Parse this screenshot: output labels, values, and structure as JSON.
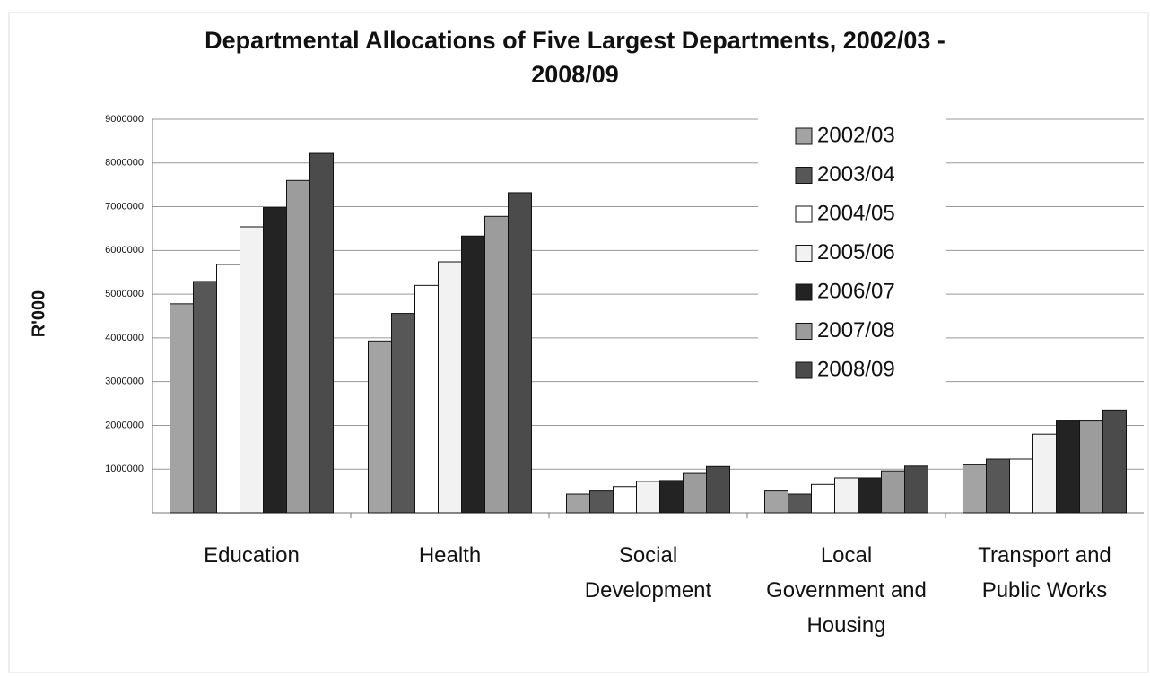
{
  "chart_data": {
    "type": "bar",
    "title": "Departmental Allocations of Five Largest Departments, 2002/03 - 2008/09",
    "y_label": "R'000",
    "categories": [
      "Education",
      "Health",
      "Social Development",
      "Local Government and Housing",
      "Transport and Public Works"
    ],
    "series": [
      {
        "name": "2002/03",
        "color": "#a3a3a3",
        "values": [
          4780000,
          3930000,
          430000,
          500000,
          1100000
        ]
      },
      {
        "name": "2003/04",
        "color": "#575757",
        "values": [
          5290000,
          4560000,
          500000,
          430000,
          1230000
        ]
      },
      {
        "name": "2004/05",
        "color": "#ffffff",
        "values": [
          5680000,
          5200000,
          600000,
          650000,
          1230000
        ]
      },
      {
        "name": "2005/06",
        "color": "#f2f2f2",
        "values": [
          6540000,
          5740000,
          720000,
          800000,
          1800000
        ]
      },
      {
        "name": "2006/07",
        "color": "#232323",
        "values": [
          6980000,
          6330000,
          740000,
          800000,
          2100000
        ]
      },
      {
        "name": "2007/08",
        "color": "#9c9c9c",
        "values": [
          7600000,
          6780000,
          900000,
          960000,
          2100000
        ]
      },
      {
        "name": "2008/09",
        "color": "#4b4b4b",
        "values": [
          8220000,
          7320000,
          1060000,
          1070000,
          2350000
        ]
      }
    ],
    "ylim": [
      0,
      9000000
    ],
    "yticks": [
      1000000,
      2000000,
      3000000,
      4000000,
      5000000,
      6000000,
      7000000,
      8000000,
      9000000
    ],
    "grid": true,
    "legend": "top-right"
  }
}
